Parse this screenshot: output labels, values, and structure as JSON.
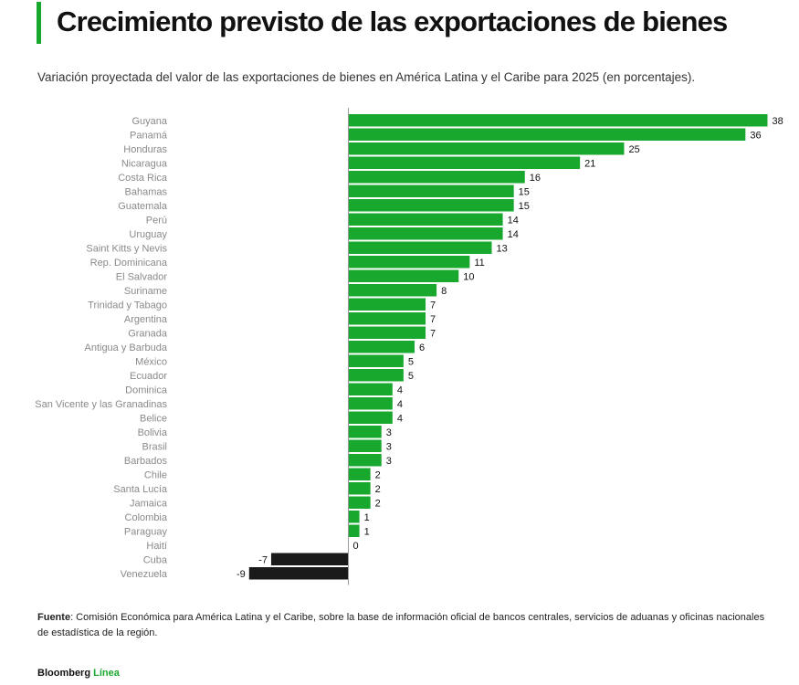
{
  "header": {
    "title": "Crecimiento previsto de las exportaciones de bienes",
    "subtitle": "Variación proyectada del valor de las exportaciones de bienes en América Latina y el Caribe para 2025 (en porcentajes)."
  },
  "colors": {
    "accent": "#19a82e",
    "positive_bar": "#19a82e",
    "negative_bar": "#1a1a1a"
  },
  "chart_data": {
    "type": "bar",
    "orientation": "horizontal",
    "title": "",
    "xlabel": "",
    "ylabel": "",
    "xlim": [
      -9,
      38
    ],
    "grid": false,
    "legend": "none",
    "categories": [
      "Guyana",
      "Panamá",
      "Honduras",
      "Nicaragua",
      "Costa Rica",
      "Bahamas",
      "Guatemala",
      "Perú",
      "Uruguay",
      "Saint Kitts y Nevis",
      "Rep. Dominicana",
      "El Salvador",
      "Suriname",
      "Trinidad y Tabago",
      "Argentina",
      "Granada",
      "Antigua y Barbuda",
      "México",
      "Ecuador",
      "Dominica",
      "San Vicente y las Granadinas",
      "Belice",
      "Bolivia",
      "Brasil",
      "Barbados",
      "Chile",
      "Santa Lucía",
      "Jamaica",
      "Colombia",
      "Paraguay",
      "Haití",
      "Cuba",
      "Venezuela"
    ],
    "values": [
      38,
      36,
      25,
      21,
      16,
      15,
      15,
      14,
      14,
      13,
      11,
      10,
      8,
      7,
      7,
      7,
      6,
      5,
      5,
      4,
      4,
      4,
      3,
      3,
      3,
      2,
      2,
      2,
      1,
      1,
      0,
      -7,
      -9
    ]
  },
  "footer": {
    "source_label": "Fuente",
    "source_text": ": Comisión Económica para América Latina y el Caribe, sobre la base de información oficial de bancos centrales, servicios de aduanas y oficinas nacionales de estadística de la región."
  },
  "brand": {
    "part1": "Bloomberg",
    "part2": "Línea"
  }
}
